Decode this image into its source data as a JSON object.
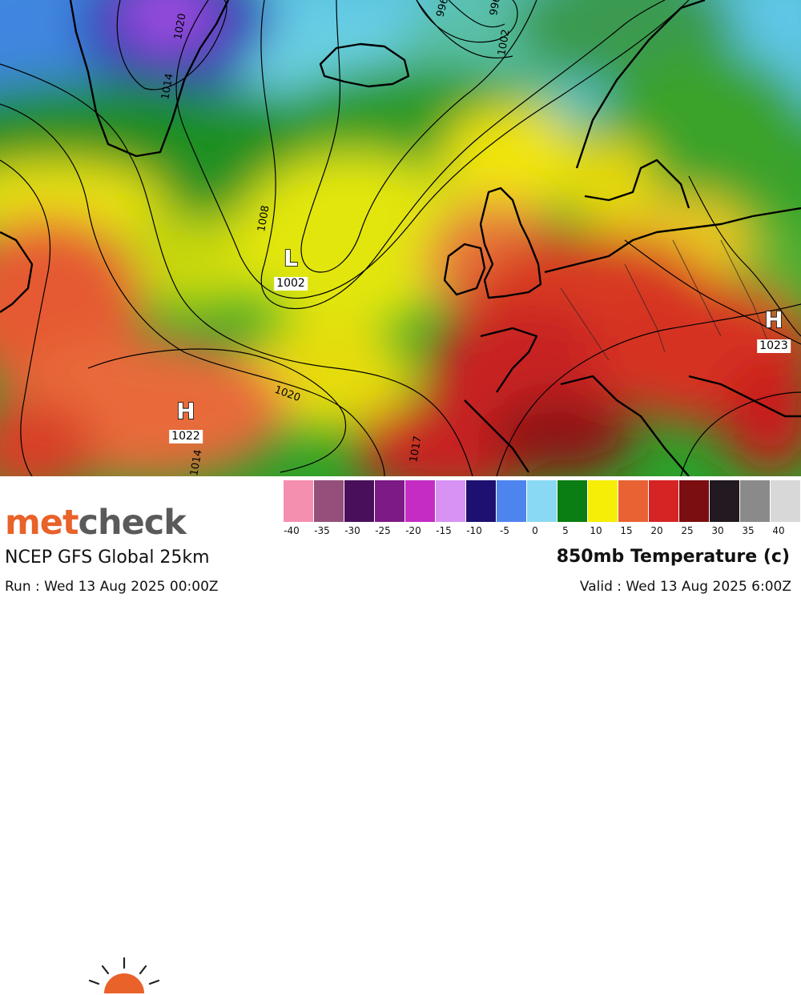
{
  "map": {
    "pressure_systems": [
      {
        "type": "L",
        "value": "1002"
      },
      {
        "type": "H",
        "value": "1022"
      },
      {
        "type": "H",
        "value": "1023"
      }
    ],
    "isobar_labels": [
      "996",
      "996",
      "1002",
      "1008",
      "1014",
      "1020",
      "1020",
      "1017",
      "1014"
    ]
  },
  "branding": {
    "part1": "met",
    "part2": "check"
  },
  "footer": {
    "model": "NCEP GFS Global 25km",
    "run": "Run : Wed 13 Aug 2025 00:00Z",
    "product": "850mb Temperature (c)",
    "valid": "Valid : Wed 13 Aug 2025 6:00Z"
  },
  "legend": {
    "ticks": [
      "-40",
      "-35",
      "-30",
      "-25",
      "-20",
      "-15",
      "-10",
      "-5",
      "0",
      "5",
      "10",
      "15",
      "20",
      "25",
      "30",
      "35",
      "40"
    ],
    "colors": [
      "#f58fb0",
      "#94507a",
      "#4a0f5a",
      "#7c1a86",
      "#c42cc4",
      "#d892f4",
      "#1e1070",
      "#4e84ee",
      "#8ad8f4",
      "#0a7e12",
      "#f6ee06",
      "#e86234",
      "#d62424",
      "#7a0e10",
      "#221a20",
      "#8a8a8a",
      "#d8d8d8"
    ]
  }
}
